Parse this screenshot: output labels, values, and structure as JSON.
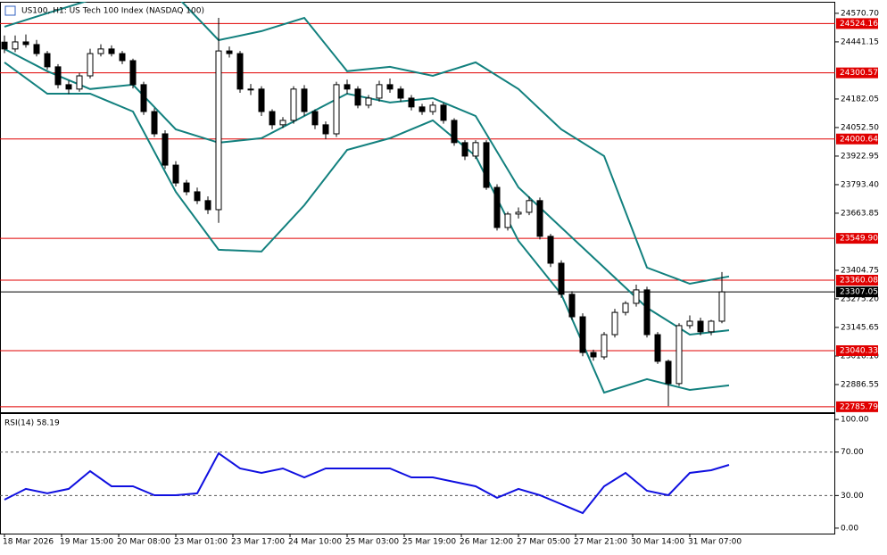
{
  "chart_data": [
    {
      "type": "candlestick",
      "title": "US100, H1:  US Tech 100 Index (NASDAQ 100)",
      "xlim": [
        -1.25,
        232.75
      ],
      "xticks": [
        {
          "value": 0,
          "label": "18 Mar 2026"
        },
        {
          "value": 16,
          "label": "19 Mar 15:00"
        },
        {
          "value": 32,
          "label": "20 Mar 08:00"
        },
        {
          "value": 48,
          "label": "23 Mar 01:00"
        },
        {
          "value": 64,
          "label": "23 Mar 17:00"
        },
        {
          "value": 80,
          "label": "24 Mar 10:00"
        },
        {
          "value": 96,
          "label": "25 Mar 03:00"
        },
        {
          "value": 112,
          "label": "25 Mar 19:00"
        },
        {
          "value": 128,
          "label": "26 Mar 12:00"
        },
        {
          "value": 144,
          "label": "27 Mar 05:00"
        },
        {
          "value": 160,
          "label": "27 Mar 21:00"
        },
        {
          "value": 176,
          "label": "30 Mar 14:00"
        },
        {
          "value": 192,
          "label": "31 Mar 07:00"
        }
      ],
      "ylim": [
        22761,
        24623
      ],
      "yticks": [
        {
          "value": 24570.7,
          "label": "24570.70"
        },
        {
          "value": 24441.15,
          "label": "24441.15"
        },
        {
          "value": 24182.05,
          "label": "24182.05"
        },
        {
          "value": 24052.5,
          "label": "24052.50"
        },
        {
          "value": 23922.95,
          "label": "23922.95"
        },
        {
          "value": 23793.4,
          "label": "23793.40"
        },
        {
          "value": 23663.85,
          "label": "23663.85"
        },
        {
          "value": 23404.75,
          "label": "23404.75"
        },
        {
          "value": 23275.2,
          "label": "23275.20"
        },
        {
          "value": 23145.65,
          "label": "23145.65"
        },
        {
          "value": 23016.1,
          "label": "23016.10"
        },
        {
          "value": 22886.55,
          "label": "22886.55"
        }
      ],
      "levels": [
        {
          "value": 24524.16,
          "label": "24524.16"
        },
        {
          "value": 24300.57,
          "label": "24300.57"
        },
        {
          "value": 24000.64,
          "label": "24000.64"
        },
        {
          "value": 23549.9,
          "label": "23549.90"
        },
        {
          "value": 23360.08,
          "label": "23360.08"
        },
        {
          "value": 23040.33,
          "label": "23040.33"
        },
        {
          "value": 22785.79,
          "label": "22785.79"
        }
      ],
      "level_color": "#e00000",
      "current_price": {
        "value": 23307.05,
        "label": "23307.05"
      },
      "x": [
        0,
        3,
        6,
        9,
        12,
        15,
        18,
        21,
        24,
        27,
        30,
        33,
        36,
        39,
        42,
        45,
        48,
        51,
        54,
        57,
        60,
        63,
        66,
        69,
        72,
        75,
        78,
        81,
        84,
        87,
        90,
        93,
        96,
        99,
        102,
        105,
        108,
        111,
        114,
        117,
        120,
        123,
        126,
        129,
        132,
        135,
        138,
        141,
        144,
        147,
        150,
        153,
        156,
        159,
        162,
        165,
        168,
        171,
        174,
        177,
        180,
        183,
        186,
        189,
        192,
        195,
        198,
        201
      ],
      "open": [
        24440,
        24409,
        24441,
        24429,
        24388,
        24328,
        24247,
        24227,
        24287,
        24388,
        24409,
        24388,
        24356,
        24247,
        24125,
        24024,
        23882,
        23801,
        23761,
        23721,
        23680,
        24400,
        24388,
        24227,
        24227,
        24125,
        24065,
        24085,
        24227,
        24125,
        24065,
        24024,
        24247,
        24227,
        24154,
        24186,
        24247,
        24227,
        24186,
        24146,
        24125,
        24154,
        24085,
        23984,
        23923,
        23984,
        23781,
        23599,
        23660,
        23668,
        23721,
        23559,
        23437,
        23296,
        23194,
        23032,
        23012,
        23113,
        23214,
        23255,
        23316,
        23113,
        22992,
        22891,
        23154,
        23174,
        23126,
        23174
      ],
      "high": [
        24470,
        24470,
        24475,
        24450,
        24400,
        24340,
        24265,
        24300,
        24410,
        24430,
        24425,
        24400,
        24365,
        24260,
        24140,
        24040,
        23900,
        23815,
        23780,
        23740,
        24550,
        24420,
        24400,
        24250,
        24240,
        24135,
        24100,
        24240,
        24245,
        24135,
        24080,
        24260,
        24270,
        24240,
        24200,
        24265,
        24275,
        24240,
        24200,
        24160,
        24170,
        24165,
        24095,
        23995,
        23995,
        23995,
        23795,
        23670,
        23690,
        23740,
        23735,
        23570,
        23450,
        23310,
        23210,
        23045,
        23125,
        23230,
        23265,
        23340,
        23330,
        23125,
        23000,
        23165,
        23200,
        23190,
        23180,
        23397
      ],
      "low": [
        24390,
        24395,
        24415,
        24375,
        24315,
        24230,
        24205,
        24215,
        24275,
        24375,
        24375,
        24340,
        24230,
        24110,
        24010,
        23865,
        23785,
        23745,
        23705,
        23660,
        23620,
        24370,
        24210,
        24200,
        24105,
        24045,
        24050,
        24070,
        24105,
        24045,
        24000,
        24010,
        24205,
        24140,
        24140,
        24170,
        24210,
        24170,
        24130,
        24110,
        24110,
        24070,
        23970,
        23905,
        23910,
        23770,
        23585,
        23585,
        23640,
        23655,
        23545,
        23420,
        23280,
        23180,
        23015,
        22995,
        23000,
        23100,
        23200,
        23240,
        23100,
        22980,
        22789,
        22880,
        23140,
        23110,
        23110,
        23165
      ],
      "close": [
        24409,
        24441,
        24429,
        24388,
        24328,
        24247,
        24227,
        24287,
        24388,
        24409,
        24388,
        24356,
        24247,
        24125,
        24024,
        23882,
        23801,
        23761,
        23721,
        23680,
        24400,
        24388,
        24227,
        24227,
        24125,
        24065,
        24085,
        24227,
        24125,
        24065,
        24024,
        24247,
        24227,
        24154,
        24186,
        24247,
        24227,
        24186,
        24146,
        24125,
        24154,
        24085,
        23984,
        23923,
        23984,
        23781,
        23599,
        23660,
        23668,
        23721,
        23559,
        23437,
        23296,
        23194,
        23032,
        23012,
        23113,
        23214,
        23255,
        23316,
        23113,
        22992,
        22891,
        23154,
        23174,
        23126,
        23174,
        23307
      ],
      "bands_x": [
        0,
        12,
        24,
        36,
        48,
        60,
        72,
        84,
        96,
        108,
        120,
        132,
        144,
        156,
        168,
        180,
        192,
        203
      ],
      "bands": [
        {
          "color": "#12807e",
          "values": [
            24510,
            24571,
            24631,
            24672,
            24652,
            24449,
            24490,
            24550,
            24308,
            24328,
            24287,
            24348,
            24227,
            24044,
            23923,
            23417,
            23344,
            23377
          ]
        },
        {
          "color": "#12807e",
          "values": [
            24409,
            24308,
            24227,
            24247,
            24044,
            23984,
            24004,
            24105,
            24206,
            24166,
            24186,
            24105,
            23781,
            23599,
            23417,
            23235,
            23113,
            23133
          ]
        },
        {
          "color": "#12807e",
          "values": [
            24348,
            24206,
            24206,
            24125,
            23761,
            23498,
            23490,
            23700,
            23951,
            24004,
            24085,
            23923,
            23538,
            23296,
            22850,
            22911,
            22862,
            22883
          ]
        }
      ]
    },
    {
      "type": "line",
      "title": "RSI(14) 58.19",
      "ylim": [
        -5,
        105
      ],
      "yticks": [
        {
          "value": 100,
          "label": "100.00"
        },
        {
          "value": 70,
          "label": "70.00"
        },
        {
          "value": 30,
          "label": "30.00"
        },
        {
          "value": 0,
          "label": "0.00"
        }
      ],
      "levels": [
        70,
        30
      ],
      "x": [
        0,
        6,
        12,
        18,
        24,
        30,
        36,
        42,
        48,
        54,
        60,
        66,
        72,
        78,
        84,
        90,
        96,
        102,
        108,
        114,
        120,
        126,
        132,
        138,
        144,
        150,
        156,
        162,
        168,
        174,
        180,
        186,
        192,
        198,
        203
      ],
      "series": [
        {
          "color": "#1010e0",
          "values": [
            26.2,
            36.1,
            32.0,
            36.1,
            52.5,
            38.5,
            38.5,
            30.3,
            30.3,
            32.0,
            68.9,
            54.9,
            50.8,
            54.9,
            46.7,
            54.9,
            54.9,
            54.9,
            54.9,
            46.7,
            46.7,
            42.6,
            38.5,
            27.9,
            36.1,
            30.3,
            22.1,
            13.9,
            38.5,
            50.8,
            34.4,
            30.3,
            50.8,
            53.3,
            58.19
          ]
        }
      ]
    }
  ]
}
